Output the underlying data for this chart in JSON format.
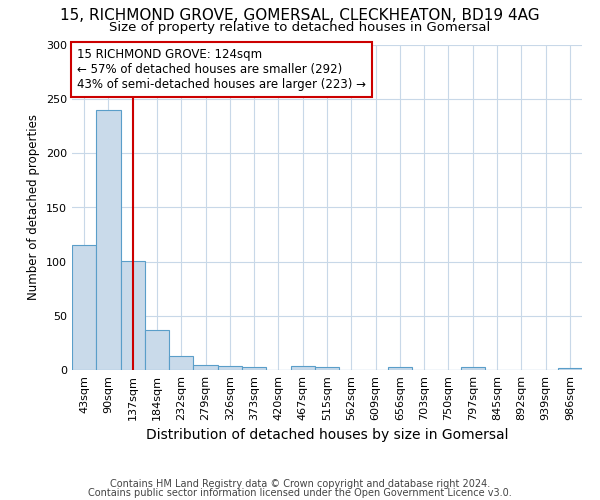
{
  "title1": "15, RICHMOND GROVE, GOMERSAL, CLECKHEATON, BD19 4AG",
  "title2": "Size of property relative to detached houses in Gomersal",
  "xlabel": "Distribution of detached houses by size in Gomersal",
  "ylabel": "Number of detached properties",
  "categories": [
    "43sqm",
    "90sqm",
    "137sqm",
    "184sqm",
    "232sqm",
    "279sqm",
    "326sqm",
    "373sqm",
    "420sqm",
    "467sqm",
    "515sqm",
    "562sqm",
    "609sqm",
    "656sqm",
    "703sqm",
    "750sqm",
    "797sqm",
    "845sqm",
    "892sqm",
    "939sqm",
    "986sqm"
  ],
  "values": [
    115,
    240,
    101,
    37,
    13,
    5,
    4,
    3,
    0,
    4,
    3,
    0,
    0,
    3,
    0,
    0,
    3,
    0,
    0,
    0,
    2
  ],
  "bar_color": "#c9daea",
  "bar_edge_color": "#5a9ec9",
  "vline_x": 2.0,
  "vline_color": "#cc0000",
  "annotation_text": "15 RICHMOND GROVE: 124sqm\n← 57% of detached houses are smaller (292)\n43% of semi-detached houses are larger (223) →",
  "annotation_box_color": "#ffffff",
  "annotation_box_edge": "#cc0000",
  "footnote1": "Contains HM Land Registry data © Crown copyright and database right 2024.",
  "footnote2": "Contains public sector information licensed under the Open Government Licence v3.0.",
  "ylim": [
    0,
    300
  ],
  "background_color": "#ffffff",
  "grid_color": "#c8d8e8",
  "title1_fontsize": 11,
  "title2_fontsize": 9.5,
  "ylabel_fontsize": 8.5,
  "xlabel_fontsize": 10,
  "tick_fontsize": 8,
  "annot_fontsize": 8.5,
  "footnote_fontsize": 7
}
